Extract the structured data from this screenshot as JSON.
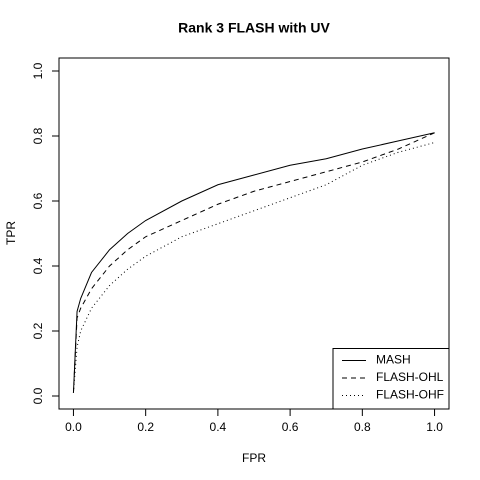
{
  "chart_data": {
    "type": "line",
    "title": "Rank 3 FLASH with UV",
    "xlabel": "FPR",
    "ylabel": "TPR",
    "x": [
      0,
      0.01,
      0.02,
      0.05,
      0.1,
      0.15,
      0.2,
      0.3,
      0.4,
      0.5,
      0.6,
      0.7,
      0.8,
      0.9,
      1.0
    ],
    "series": [
      {
        "name": "MASH",
        "color": "#000000",
        "dash": "solid",
        "values": [
          0.01,
          0.26,
          0.3,
          0.38,
          0.45,
          0.5,
          0.54,
          0.6,
          0.65,
          0.68,
          0.71,
          0.73,
          0.76,
          0.785,
          0.81
        ]
      },
      {
        "name": "FLASH-OHL",
        "color": "#000000",
        "dash": "dashed",
        "values": [
          0.01,
          0.24,
          0.27,
          0.33,
          0.4,
          0.45,
          0.49,
          0.54,
          0.59,
          0.63,
          0.66,
          0.69,
          0.72,
          0.76,
          0.81
        ]
      },
      {
        "name": "FLASH-OHF",
        "color": "#000000",
        "dash": "dotted",
        "values": [
          0.01,
          0.15,
          0.2,
          0.27,
          0.34,
          0.39,
          0.43,
          0.49,
          0.53,
          0.57,
          0.61,
          0.65,
          0.71,
          0.75,
          0.78
        ]
      }
    ],
    "xlim": [
      -0.04,
      1.04
    ],
    "ylim": [
      -0.04,
      1.04
    ],
    "xticks": [
      {
        "value": 0,
        "label": "0.0"
      },
      0.2,
      0.4,
      0.6,
      0.8,
      {
        "value": 1,
        "label": "1.0"
      }
    ],
    "yticks": [
      {
        "value": 0,
        "label": "0.0"
      },
      0.2,
      0.4,
      0.6,
      0.8,
      {
        "value": 1,
        "label": "1.0"
      }
    ],
    "legend": "bottom-right"
  }
}
